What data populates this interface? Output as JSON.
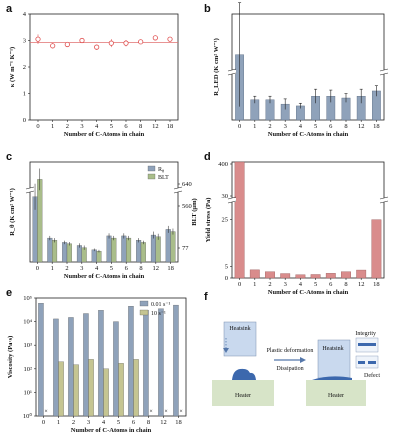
{
  "chart_data": [
    {
      "panel": "a",
      "type": "scatter",
      "x": [
        0,
        1,
        2,
        3,
        4,
        5,
        6,
        8,
        12,
        18
      ],
      "categories": [
        "0",
        "1",
        "2",
        "3",
        "4",
        "5",
        "6",
        "8",
        "12",
        "18"
      ],
      "values": [
        3.05,
        2.8,
        2.85,
        3.0,
        2.75,
        2.9,
        2.9,
        2.95,
        3.1,
        3.05
      ],
      "errors": [
        0.18,
        0.1,
        0.08,
        0.06,
        0.1,
        0.15,
        0.12,
        0.08,
        0.06,
        0.08
      ],
      "hline": 2.92,
      "xlabel": "Number of C-Atoms in chain",
      "ylabel": "κ (W m⁻¹ K⁻¹)",
      "ylim": [
        0,
        4
      ],
      "yticks": [
        "0",
        "1",
        "2",
        "3",
        "4"
      ],
      "colors": {
        "marker": "#e05050",
        "line": "#e07070"
      }
    },
    {
      "panel": "b",
      "type": "bar",
      "categories": [
        "0",
        "1",
        "2",
        "3",
        "4",
        "5",
        "6",
        "8",
        "12",
        "18"
      ],
      "values": [
        1.7,
        0.23,
        0.23,
        0.18,
        0.16,
        0.27,
        0.27,
        0.25,
        0.27,
        0.33
      ],
      "errors": [
        0.9,
        0.04,
        0.04,
        0.06,
        0.03,
        0.08,
        0.07,
        0.05,
        0.08,
        0.06
      ],
      "xlabel": "Number of C-Atoms in chain",
      "ylabel": "R_LED (K cm² W⁻¹)",
      "axis_break": true,
      "colors": {
        "bar": "#8fa2ba"
      }
    },
    {
      "panel": "c",
      "type": "bar",
      "categories": [
        "0",
        "1",
        "2",
        "3",
        "4",
        "5",
        "6",
        "8",
        "12",
        "18"
      ],
      "series": [
        {
          "name": "R",
          "name_sub": "θ",
          "values": [
            1.5,
            0.55,
            0.45,
            0.38,
            0.28,
            0.6,
            0.6,
            0.5,
            0.62,
            0.75
          ],
          "errors": [
            0.3,
            0.05,
            0.04,
            0.05,
            0.03,
            0.06,
            0.06,
            0.05,
            0.08,
            0.08
          ]
        },
        {
          "name": "BLT",
          "values": [
            1.9,
            0.5,
            0.42,
            0.33,
            0.25,
            0.55,
            0.55,
            0.45,
            0.58,
            0.7
          ],
          "errors": [
            0.25,
            0.05,
            0.04,
            0.05,
            0.03,
            0.05,
            0.05,
            0.04,
            0.07,
            0.07
          ]
        }
      ],
      "xlabel": "Number of C-Atoms in chain",
      "ylabel": "R_θ (K cm² W⁻¹)",
      "y2label": "BLT (μm)",
      "y2ticks": [
        "640",
        "560",
        "77"
      ],
      "colors": {
        "s1": "#8fa2ba",
        "s2": "#a9bd8a"
      }
    },
    {
      "panel": "d",
      "type": "bar",
      "categories": [
        "0",
        "1",
        "2",
        "3",
        "4",
        "5",
        "6",
        "8",
        "12",
        "18"
      ],
      "values": [
        400,
        3.5,
        2.7,
        1.9,
        1.4,
        1.5,
        2.0,
        2.7,
        3.4,
        25
      ],
      "xlabel": "Number of C-Atoms in chain",
      "ylabel": "Yield stress (Pa)",
      "yticks": [
        "0",
        "5",
        "25",
        "30",
        "400"
      ],
      "axis_break": true,
      "colors": {
        "bar": "#d98c8c"
      }
    },
    {
      "panel": "e",
      "type": "bar",
      "yscale": "log",
      "categories": [
        "0",
        "1",
        "2",
        "3",
        "4",
        "5",
        "6",
        "8",
        "12",
        "18"
      ],
      "series": [
        {
          "name": "0.01 s⁻¹",
          "values": [
            60000,
            13000,
            15000,
            22000,
            30000,
            10000,
            45000,
            30000,
            35000,
            50000
          ]
        },
        {
          "name": "10 s⁻¹",
          "values": [
            null,
            200,
            150,
            250,
            100,
            170,
            250,
            null,
            null,
            null
          ]
        }
      ],
      "missing_marker": "×",
      "xlabel": "Number of C-Atoms in chain",
      "ylabel": "Viscosity (Pa·s)",
      "ylim": [
        1,
        100000
      ],
      "yticks": [
        "10⁰",
        "10¹",
        "10²",
        "10³",
        "10⁴",
        "10⁵"
      ],
      "colors": {
        "s1": "#8fa2ba",
        "s2": "#c5c592"
      }
    }
  ],
  "panel_labels": [
    "a",
    "b",
    "c",
    "d",
    "e",
    "f"
  ],
  "schematic": {
    "heatsink": "Heatsink",
    "heater": "Heater",
    "arrow_top": "Plastic deformation",
    "arrow_bottom": "Dissipation",
    "integrity": "Integrity",
    "defect": "Defect"
  }
}
